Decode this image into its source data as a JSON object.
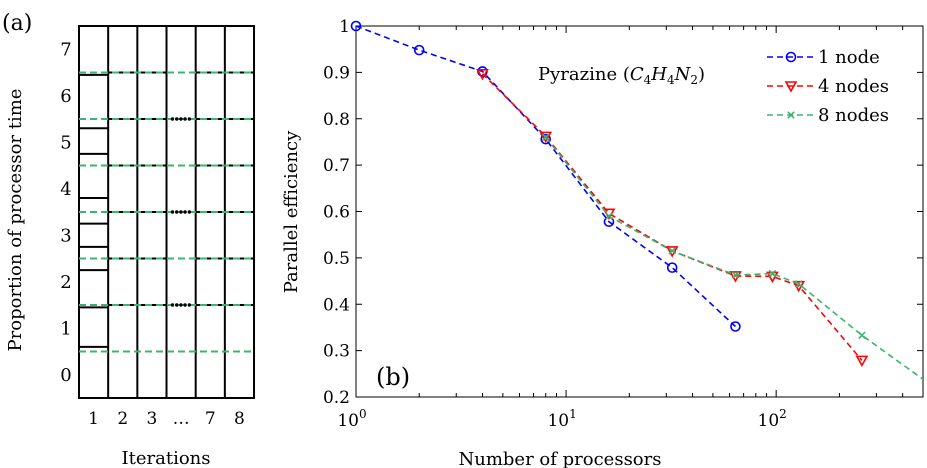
{
  "panel_a": {
    "label": "(a)",
    "ylabel": "Proportion of processor time",
    "xlabel": "Iterations",
    "yticks": [
      "0",
      "1",
      "2",
      "3",
      "4",
      "5",
      "6",
      "7"
    ],
    "xticks": [
      "1",
      "2",
      "3",
      "…",
      "7",
      "8"
    ],
    "grid_color": "#000000",
    "dashed_line_color": "#3cb371",
    "column1_boundaries": [
      0.6,
      1.45,
      2.25,
      2.75,
      3.25,
      3.8,
      4.75,
      5.3,
      6.45
    ],
    "other_column_boundaries": [
      1.5,
      2.5,
      3.5,
      4.5,
      5.5,
      6.5
    ],
    "dashed_lines": [
      0.5,
      1.5,
      2.5,
      3.5,
      4.5,
      5.5,
      6.5
    ],
    "ellipsis_rows": [
      1.5,
      3.5,
      5.5
    ]
  },
  "chart_data": {
    "type": "line",
    "panel_label": "(b)",
    "annotation": "Pyrazine",
    "annotation_formula": [
      "C",
      "4",
      "H",
      "4",
      "N",
      "2"
    ],
    "xlabel": "Number of processors",
    "ylabel": "Parallel efficiency",
    "xscale": "log",
    "xlim": [
      1,
      500
    ],
    "ylim": [
      0.2,
      1.0
    ],
    "xticks": [
      {
        "value": 1,
        "base": "10",
        "exp": "0"
      },
      {
        "value": 10,
        "base": "10",
        "exp": "1"
      },
      {
        "value": 100,
        "base": "10",
        "exp": "2"
      }
    ],
    "yticks": [
      "0.2",
      "0.3",
      "0.4",
      "0.5",
      "0.6",
      "0.7",
      "0.8",
      "0.9",
      "1"
    ],
    "legend_position": "top-right",
    "series": [
      {
        "name": "1 node",
        "color": "#0000ff",
        "marker": "circle",
        "x": [
          1,
          2,
          4,
          8,
          16,
          32,
          64
        ],
        "y": [
          1.0,
          0.948,
          0.902,
          0.756,
          0.578,
          0.479,
          0.352
        ]
      },
      {
        "name": "4 nodes",
        "color": "#ff0000",
        "marker": "triangle-down",
        "x": [
          4,
          8,
          16,
          32,
          64,
          96,
          128,
          256
        ],
        "y": [
          0.897,
          0.762,
          0.596,
          0.515,
          0.461,
          0.46,
          0.44,
          0.279
        ]
      },
      {
        "name": "8 nodes",
        "color": "#3cb371",
        "marker": "x",
        "x": [
          8,
          16,
          32,
          64,
          96,
          128,
          256,
          512
        ],
        "y": [
          0.76,
          0.59,
          0.515,
          0.463,
          0.466,
          0.444,
          0.333,
          0.235
        ]
      }
    ]
  }
}
